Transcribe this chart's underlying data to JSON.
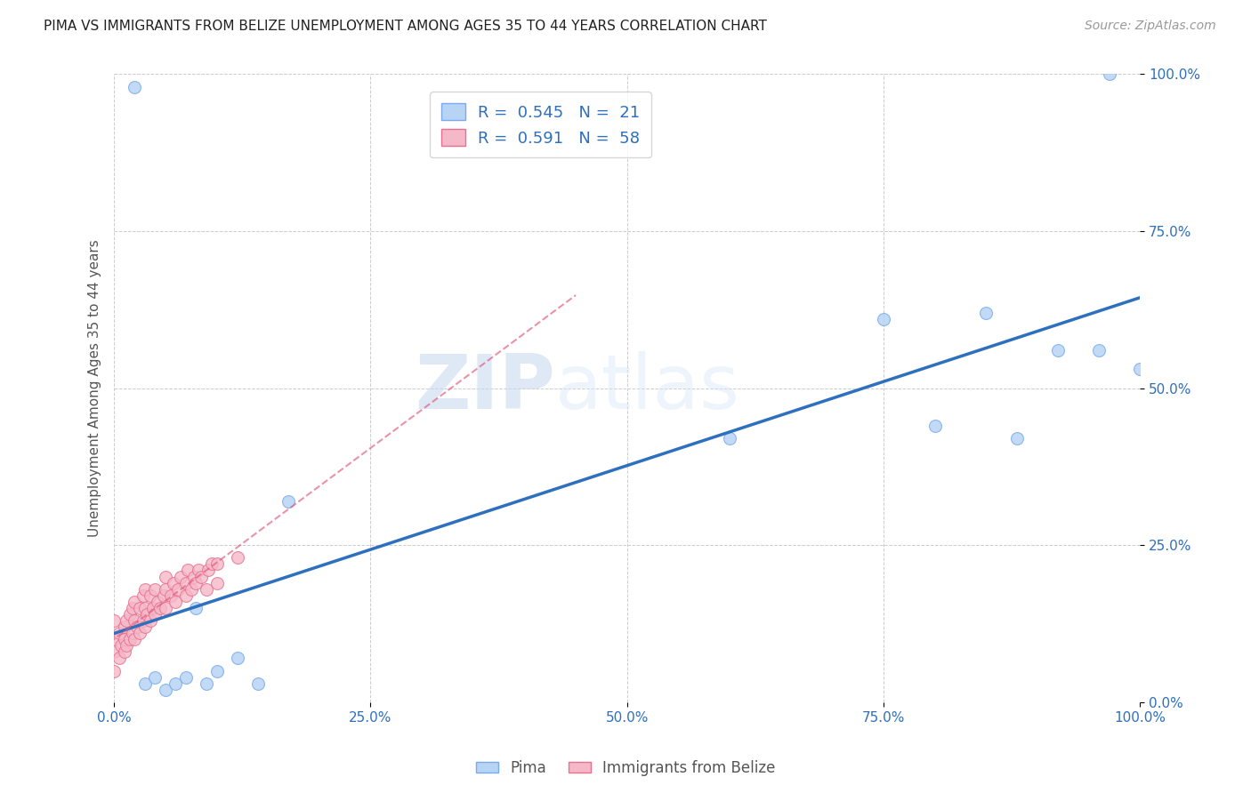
{
  "title": "PIMA VS IMMIGRANTS FROM BELIZE UNEMPLOYMENT AMONG AGES 35 TO 44 YEARS CORRELATION CHART",
  "source": "Source: ZipAtlas.com",
  "ylabel": "Unemployment Among Ages 35 to 44 years",
  "xlim": [
    0,
    1
  ],
  "ylim": [
    0,
    1
  ],
  "xticks": [
    0,
    0.25,
    0.5,
    0.75,
    1.0
  ],
  "yticks": [
    0,
    0.25,
    0.5,
    0.75,
    1.0
  ],
  "xticklabels": [
    "0.0%",
    "25.0%",
    "50.0%",
    "75.0%",
    "100.0%"
  ],
  "yticklabels": [
    "0.0%",
    "25.0%",
    "50.0%",
    "75.0%",
    "100.0%"
  ],
  "pima_color": "#b8d4f5",
  "pima_edge_color": "#7aabee",
  "belize_color": "#f5b8c8",
  "belize_edge_color": "#e87090",
  "regression_blue_color": "#2e6fbe",
  "regression_pink_color": "#e05878",
  "legend_R_pima": "0.545",
  "legend_N_pima": "21",
  "legend_R_belize": "0.591",
  "legend_N_belize": "58",
  "pima_x": [
    0.02,
    0.03,
    0.04,
    0.05,
    0.06,
    0.07,
    0.08,
    0.09,
    0.1,
    0.12,
    0.14,
    0.17,
    0.97,
    0.6,
    0.75,
    0.8,
    0.85,
    0.88,
    0.92,
    0.96,
    1.0
  ],
  "pima_y": [
    0.98,
    0.03,
    0.04,
    0.02,
    0.03,
    0.04,
    0.15,
    0.03,
    0.05,
    0.07,
    0.03,
    0.32,
    1.0,
    0.42,
    0.61,
    0.44,
    0.62,
    0.42,
    0.56,
    0.56,
    0.53
  ],
  "belize_x": [
    0.0,
    0.0,
    0.0,
    0.0,
    0.005,
    0.005,
    0.007,
    0.01,
    0.01,
    0.01,
    0.012,
    0.012,
    0.015,
    0.015,
    0.018,
    0.018,
    0.02,
    0.02,
    0.02,
    0.022,
    0.025,
    0.025,
    0.028,
    0.028,
    0.03,
    0.03,
    0.03,
    0.032,
    0.035,
    0.035,
    0.038,
    0.04,
    0.04,
    0.042,
    0.045,
    0.048,
    0.05,
    0.05,
    0.05,
    0.055,
    0.058,
    0.06,
    0.062,
    0.065,
    0.07,
    0.07,
    0.072,
    0.075,
    0.078,
    0.08,
    0.082,
    0.085,
    0.09,
    0.092,
    0.095,
    0.1,
    0.1,
    0.12
  ],
  "belize_y": [
    0.05,
    0.08,
    0.1,
    0.13,
    0.07,
    0.11,
    0.09,
    0.08,
    0.1,
    0.12,
    0.09,
    0.13,
    0.1,
    0.14,
    0.11,
    0.15,
    0.1,
    0.13,
    0.16,
    0.12,
    0.11,
    0.15,
    0.13,
    0.17,
    0.12,
    0.15,
    0.18,
    0.14,
    0.13,
    0.17,
    0.15,
    0.14,
    0.18,
    0.16,
    0.15,
    0.17,
    0.15,
    0.18,
    0.2,
    0.17,
    0.19,
    0.16,
    0.18,
    0.2,
    0.17,
    0.19,
    0.21,
    0.18,
    0.2,
    0.19,
    0.21,
    0.2,
    0.18,
    0.21,
    0.22,
    0.19,
    0.22,
    0.23
  ],
  "watermark_zip": "ZIP",
  "watermark_atlas": "atlas",
  "background_color": "#ffffff",
  "grid_color": "#cccccc",
  "marker_size": 100,
  "title_fontsize": 11,
  "tick_fontsize": 11
}
